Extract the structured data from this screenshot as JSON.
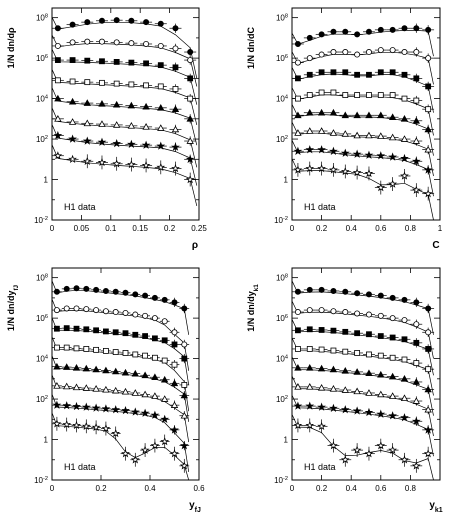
{
  "chart_data": [
    {
      "type": "scatter",
      "ylabel": "1/N dn/dρ",
      "xlabel": "ρ",
      "annotation": "H1 data",
      "xlim": [
        0,
        0.25
      ],
      "xticks": [
        "0",
        "0.05",
        "0.1",
        "0.15",
        "0.2",
        "0.25"
      ],
      "ylim": [
        0.01,
        300000000
      ],
      "ylog": true,
      "yticks": [
        "10^-2",
        "1",
        "10^2",
        "10^4",
        "10^6",
        "10^8"
      ],
      "x": [
        0.01,
        0.035,
        0.06,
        0.085,
        0.11,
        0.135,
        0.16,
        0.185,
        0.21,
        0.235
      ],
      "series": [
        {
          "marker": "filled-circle",
          "values": [
            30000000.0,
            45000000.0,
            60000000.0,
            70000000.0,
            75000000.0,
            70000000.0,
            60000000.0,
            50000000.0,
            30000000.0,
            2000000.0
          ]
        },
        {
          "marker": "open-circle",
          "values": [
            4000000.0,
            6000000.0,
            6500000.0,
            6500000.0,
            6000000.0,
            5500000.0,
            5000000.0,
            4000000.0,
            3000000.0,
            800000.0
          ]
        },
        {
          "marker": "filled-square",
          "values": [
            800000.0,
            800000.0,
            750000.0,
            700000.0,
            650000.0,
            600000.0,
            550000.0,
            450000.0,
            350000.0,
            100000.0
          ]
        },
        {
          "marker": "open-square",
          "values": [
            80000.0,
            70000.0,
            65000.0,
            60000.0,
            55000.0,
            50000.0,
            45000.0,
            40000.0,
            30000.0,
            10000.0
          ]
        },
        {
          "marker": "filled-triangle",
          "values": [
            10000.0,
            7000.0,
            6000.0,
            5500.0,
            5000.0,
            4500.0,
            4000.0,
            3500.0,
            3000.0,
            1000.0
          ]
        },
        {
          "marker": "open-triangle",
          "values": [
            1000.0,
            700.0,
            600.0,
            550.0,
            500.0,
            450.0,
            400.0,
            350.0,
            300.0,
            80.0
          ]
        },
        {
          "marker": "filled-star",
          "values": [
            150.0,
            100.0,
            80.0,
            70.0,
            60.0,
            55.0,
            50.0,
            45.0,
            40.0,
            10.0
          ]
        },
        {
          "marker": "open-star",
          "values": [
            15.0,
            10.0,
            8.0,
            7.0,
            6.0,
            5.5,
            5.0,
            4.0,
            3.5,
            1.0
          ]
        }
      ]
    },
    {
      "type": "scatter",
      "ylabel": "1/N dn/dC",
      "xlabel": "C",
      "annotation": "H1 data",
      "xlim": [
        0,
        1
      ],
      "xticks": [
        "0",
        "0.2",
        "0.4",
        "0.6",
        "0.8",
        "1"
      ],
      "ylim": [
        0.01,
        300000000
      ],
      "ylog": true,
      "yticks": [
        "10^-2",
        "1",
        "10^2",
        "10^4",
        "10^6",
        "10^8"
      ],
      "x": [
        0.04,
        0.12,
        0.2,
        0.28,
        0.36,
        0.44,
        0.52,
        0.6,
        0.68,
        0.76,
        0.84,
        0.92
      ],
      "series": [
        {
          "marker": "filled-circle",
          "values": [
            5000000.0,
            10000000.0,
            15000000.0,
            20000000.0,
            20000000.0,
            15000000.0,
            20000000.0,
            25000000.0,
            25000000.0,
            30000000.0,
            30000000.0,
            25000000.0
          ]
        },
        {
          "marker": "open-circle",
          "values": [
            600000.0,
            1000000.0,
            1500000.0,
            2000000.0,
            2000000.0,
            1500000.0,
            2000000.0,
            2500000.0,
            2500000.0,
            2000000.0,
            2000000.0,
            1000000.0
          ]
        },
        {
          "marker": "filled-square",
          "values": [
            100000.0,
            150000.0,
            200000.0,
            200000.0,
            200000.0,
            150000.0,
            150000.0,
            200000.0,
            200000.0,
            150000.0,
            100000.0,
            40000.0
          ]
        },
        {
          "marker": "open-square",
          "values": [
            10000.0,
            15000.0,
            20000.0,
            20000.0,
            15000.0,
            15000.0,
            15000.0,
            15000.0,
            15000.0,
            10000.0,
            8000.0,
            3000.0
          ]
        },
        {
          "marker": "filled-triangle",
          "values": [
            1500.0,
            2000.0,
            2000.0,
            2000.0,
            1500.0,
            1500.0,
            1500.0,
            1500.0,
            1200.0,
            1000.0,
            800.0,
            300.0
          ]
        },
        {
          "marker": "open-triangle",
          "values": [
            200.0,
            250.0,
            250.0,
            200.0,
            180.0,
            150.0,
            150.0,
            140.0,
            120.0,
            100.0,
            80.0,
            30.0
          ]
        },
        {
          "marker": "filled-star",
          "values": [
            25.0,
            30.0,
            30.0,
            25.0,
            20.0,
            18.0,
            16.0,
            15.0,
            13.0,
            11.0,
            8.0,
            3.0
          ]
        },
        {
          "marker": "open-star",
          "values": [
            3.0,
            3.5,
            3.5,
            3.0,
            2.5,
            2.2,
            2.0,
            0.4,
            0.6,
            1.5,
            0.3,
            0.2
          ]
        }
      ]
    },
    {
      "type": "scatter",
      "ylabel": "1/N dn/dy_fJ",
      "xlabel": "y_fJ",
      "annotation": "H1 data",
      "xlim": [
        0,
        0.6
      ],
      "xticks": [
        "0",
        "0.2",
        "0.4",
        "0.6"
      ],
      "ylim": [
        0.01,
        300000000
      ],
      "ylog": true,
      "yticks": [
        "10^-2",
        "1",
        "10^2",
        "10^4",
        "10^6",
        "10^8"
      ],
      "x": [
        0.02,
        0.06,
        0.1,
        0.14,
        0.18,
        0.22,
        0.26,
        0.3,
        0.34,
        0.38,
        0.42,
        0.46,
        0.5,
        0.54
      ],
      "series": [
        {
          "marker": "filled-circle",
          "values": [
            20000000.0,
            28000000.0,
            30000000.0,
            28000000.0,
            25000000.0,
            22000000.0,
            20000000.0,
            18000000.0,
            15000000.0,
            13000000.0,
            10000000.0,
            8000000.0,
            6000000.0,
            3000000.0
          ]
        },
        {
          "marker": "open-circle",
          "values": [
            2500000.0,
            3000000.0,
            3000000.0,
            2800000.0,
            2500000.0,
            2200000.0,
            2000000.0,
            1800000.0,
            1500000.0,
            1300000.0,
            1000000.0,
            700000.0,
            200000.0,
            50000.0
          ]
        },
        {
          "marker": "filled-square",
          "values": [
            300000.0,
            320000.0,
            300000.0,
            280000.0,
            250000.0,
            220000.0,
            200000.0,
            180000.0,
            150000.0,
            130000.0,
            100000.0,
            80000.0,
            50000.0,
            10000.0
          ]
        },
        {
          "marker": "open-square",
          "values": [
            35000.0,
            35000.0,
            32000.0,
            30000.0,
            27000.0,
            24000.0,
            21000.0,
            19000.0,
            16000.0,
            14000.0,
            11000.0,
            8000.0,
            5000.0,
            500.0
          ]
        },
        {
          "marker": "filled-triangle",
          "values": [
            4000.0,
            3800.0,
            3500.0,
            3200.0,
            2900.0,
            2600.0,
            2300.0,
            2000.0,
            1800.0,
            1500.0,
            1200.0,
            900.0,
            600.0,
            150.0
          ]
        },
        {
          "marker": "open-triangle",
          "values": [
            450.0,
            420.0,
            380.0,
            350.0,
            320.0,
            290.0,
            260.0,
            230.0,
            200.0,
            170.0,
            140.0,
            100.0,
            50.0,
            15.0
          ]
        },
        {
          "marker": "filled-star",
          "values": [
            50.0,
            47.0,
            43.0,
            40.0,
            36.0,
            33.0,
            30.0,
            27.0,
            23.0,
            20.0,
            16.0,
            10.0,
            3.0,
            0.5
          ]
        },
        {
          "marker": "open-star",
          "values": [
            6.0,
            5.5,
            5.0,
            4.5,
            4.0,
            3.5,
            2.0,
            0.2,
            0.1,
            0.3,
            0.5,
            0.8,
            0.2,
            0.05
          ]
        }
      ]
    },
    {
      "type": "scatter",
      "ylabel": "1/N dn/dy_k1",
      "xlabel": "y_k1",
      "annotation": "H1 data",
      "xlim": [
        0,
        1
      ],
      "xticks": [
        "0",
        "0.2",
        "0.4",
        "0.6",
        "0.8"
      ],
      "ylim": [
        0.01,
        300000000
      ],
      "ylog": true,
      "yticks": [
        "10^-2",
        "1",
        "10^2",
        "10^4",
        "10^6",
        "10^8"
      ],
      "x": [
        0.04,
        0.12,
        0.2,
        0.28,
        0.36,
        0.44,
        0.52,
        0.6,
        0.68,
        0.76,
        0.84,
        0.92
      ],
      "series": [
        {
          "marker": "filled-circle",
          "values": [
            20000000.0,
            25000000.0,
            25000000.0,
            22000000.0,
            20000000.0,
            17000000.0,
            15000000.0,
            13000000.0,
            10000000.0,
            8000000.0,
            6000000.0,
            3000000.0
          ]
        },
        {
          "marker": "open-circle",
          "values": [
            2000000.0,
            2500000.0,
            2500000.0,
            2200000.0,
            2000000.0,
            1700000.0,
            1500000.0,
            1300000.0,
            1000000.0,
            800000.0,
            500000.0,
            200000.0
          ]
        },
        {
          "marker": "filled-square",
          "values": [
            250000.0,
            280000.0,
            260000.0,
            240000.0,
            210000.0,
            180000.0,
            160000.0,
            130000.0,
            110000.0,
            90000.0,
            60000.0,
            30000.0
          ]
        },
        {
          "marker": "open-square",
          "values": [
            30000.0,
            30000.0,
            28000.0,
            25000.0,
            22000.0,
            19000.0,
            16000.0,
            14000.0,
            11000.0,
            9000.0,
            6000.0,
            3000.0
          ]
        },
        {
          "marker": "filled-triangle",
          "values": [
            3500.0,
            3500.0,
            3200.0,
            2900.0,
            2500.0,
            2200.0,
            1900.0,
            1600.0,
            1300.0,
            1000.0,
            700.0,
            300.0
          ]
        },
        {
          "marker": "open-triangle",
          "values": [
            400.0,
            400.0,
            360.0,
            320.0,
            280.0,
            240.0,
            200.0,
            170.0,
            140.0,
            110.0,
            80.0,
            30.0
          ]
        },
        {
          "marker": "filled-star",
          "values": [
            45.0,
            45.0,
            40.0,
            35.0,
            30.0,
            26.0,
            22.0,
            18.0,
            15.0,
            12.0,
            8.0,
            3.0
          ]
        },
        {
          "marker": "open-star",
          "values": [
            5.0,
            5.0,
            4.5,
            0.5,
            0.1,
            0.3,
            0.2,
            0.5,
            0.3,
            0.1,
            0.05,
            0.2
          ]
        }
      ]
    }
  ]
}
